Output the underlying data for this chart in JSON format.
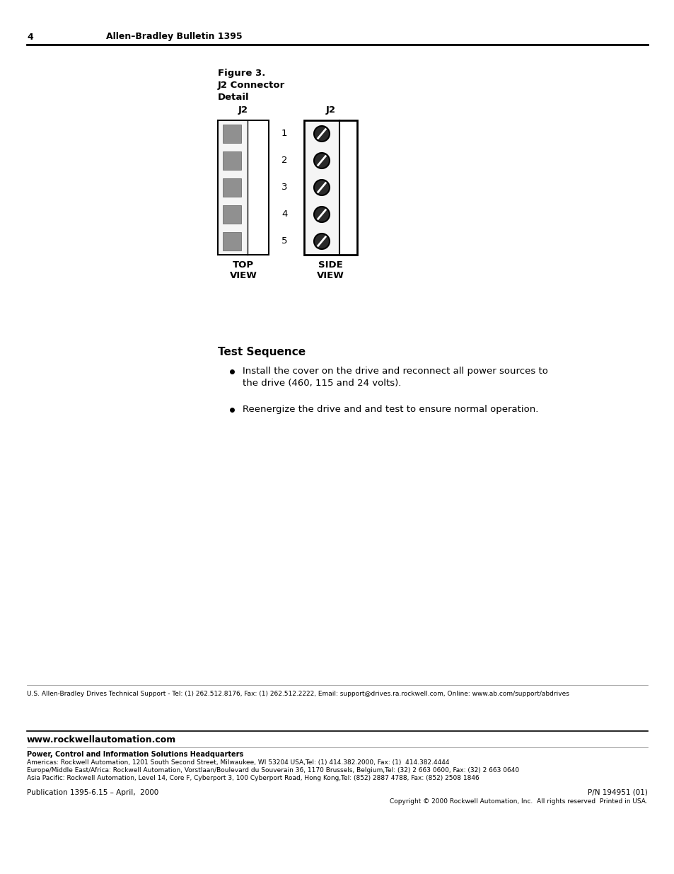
{
  "page_number": "4",
  "header_text": "Allen–Bradley Bulletin 1395",
  "figure_caption": [
    "Figure 3.",
    "J2 Connector",
    "Detail"
  ],
  "figure_j2_label": "J2",
  "figure_j2_label2": "J2",
  "top_view_label": "TOP\nVIEW",
  "side_view_label": "SIDE\nVIEW",
  "pin_numbers": [
    "1",
    "2",
    "3",
    "4",
    "5"
  ],
  "section_title": "Test Sequence",
  "bullet_points": [
    "Install the cover on the drive and reconnect all power sources to\nthe drive (460, 115 and 24 volts).",
    "Reenergize the drive and and test to ensure normal operation."
  ],
  "footer_support": "U.S. Allen-Bradley Drives Technical Support - Tel: (1) 262.512.8176, Fax: (1) 262.512.2222, Email: support@drives.ra.rockwell.com, Online: www.ab.com/support/abdrives",
  "footer_website": "www.rockwellautomation.com",
  "footer_hq": "Power, Control and Information Solutions Headquarters",
  "footer_americas": "Americas: Rockwell Automation, 1201 South Second Street, Milwaukee, WI 53204 USA,Tel: (1) 414.382.2000, Fax: (1)  414.382.4444",
  "footer_europe": "Europe/Middle East/Africa: Rockwell Automation, Vorstlaan/Boulevard du Souverain 36, 1170 Brussels, Belgium,Tel: (32) 2 663 0600, Fax: (32) 2 663 0640",
  "footer_asia": "Asia Pacific: Rockwell Automation, Level 14, Core F, Cyberport 3, 100 Cyberport Road, Hong Kong,Tel: (852) 2887 4788, Fax: (852) 2508 1846",
  "footer_pub": "Publication 1395-6.15 – April,  2000",
  "footer_pn": "P/N 194951 (01)",
  "footer_copyright": "Copyright © 2000 Rockwell Automation, Inc.  All rights reserved  Printed in USA.",
  "bg_color": "#ffffff",
  "text_color": "#000000",
  "gray_square_color": "#909090",
  "connector_fill_light": "#f5f5f5",
  "connector_fill_white": "#ffffff",
  "border_color": "#000000",
  "circle_fill": "#2a2a2a"
}
